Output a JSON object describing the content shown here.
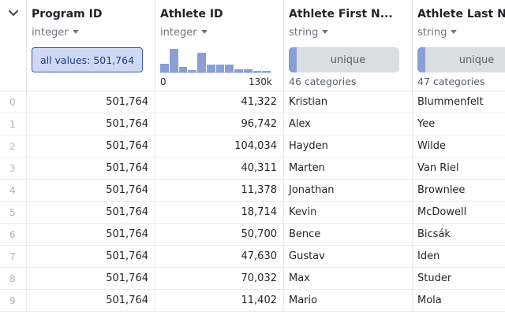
{
  "columns": [
    {
      "name": "Program ID",
      "type": "integer",
      "summary_label": "all values: 501,764"
    },
    {
      "name": "Athlete ID",
      "type": "integer",
      "hist_min": "0",
      "hist_max": "130k",
      "hist_fractions": [
        0.35,
        0.95,
        0.22,
        0.08,
        0.78,
        0.32,
        0.32,
        0.32,
        0.12,
        0.14,
        0.06,
        0.06
      ]
    },
    {
      "name": "Athlete First N...",
      "type": "string",
      "unique_label": "unique",
      "categories": "46 categories"
    },
    {
      "name": "Athlete Last N...",
      "type": "string",
      "unique_label": "unique",
      "categories": "47 categories"
    }
  ],
  "rows": [
    {
      "idx": "0",
      "program_id": "501,764",
      "athlete_id": "41,322",
      "first": "Kristian",
      "last": "Blummenfelt"
    },
    {
      "idx": "1",
      "program_id": "501,764",
      "athlete_id": "96,742",
      "first": "Alex",
      "last": "Yee"
    },
    {
      "idx": "2",
      "program_id": "501,764",
      "athlete_id": "104,034",
      "first": "Hayden",
      "last": "Wilde"
    },
    {
      "idx": "3",
      "program_id": "501,764",
      "athlete_id": "40,311",
      "first": "Marten",
      "last": "Van Riel"
    },
    {
      "idx": "4",
      "program_id": "501,764",
      "athlete_id": "11,378",
      "first": "Jonathan",
      "last": "Brownlee"
    },
    {
      "idx": "5",
      "program_id": "501,764",
      "athlete_id": "18,714",
      "first": "Kevin",
      "last": "McDowell"
    },
    {
      "idx": "6",
      "program_id": "501,764",
      "athlete_id": "50,700",
      "first": "Bence",
      "last": "Bicsák"
    },
    {
      "idx": "7",
      "program_id": "501,764",
      "athlete_id": "47,630",
      "first": "Gustav",
      "last": "Iden"
    },
    {
      "idx": "8",
      "program_id": "501,764",
      "athlete_id": "70,032",
      "first": "Max",
      "last": "Studer"
    },
    {
      "idx": "9",
      "program_id": "501,764",
      "athlete_id": "11,402",
      "first": "Mario",
      "last": "Mola"
    }
  ],
  "colors": {
    "accent": "#8a9fd6",
    "selected_fill": "#cfd9f4",
    "selected_border": "#3b5bb0"
  },
  "icons": {
    "collapse": "chevron-down-icon",
    "type_menu": "triangle-down-icon"
  }
}
